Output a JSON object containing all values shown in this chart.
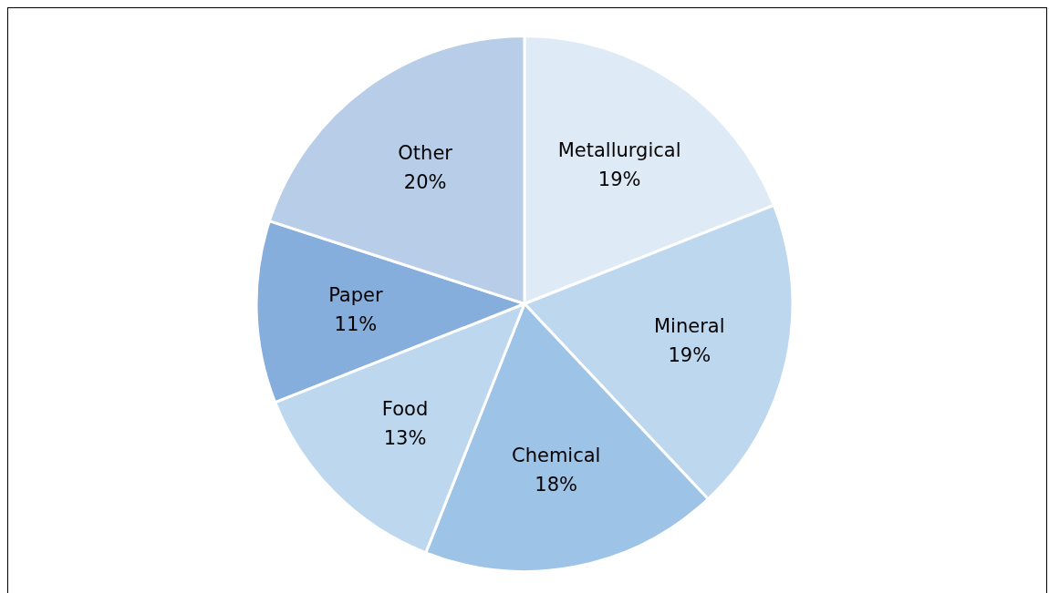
{
  "chart_data": {
    "type": "pie",
    "categories": [
      "Metallurgical",
      "Mineral",
      "Chemical",
      "Food",
      "Paper",
      "Other"
    ],
    "values": [
      19,
      19,
      18,
      13,
      11,
      20
    ],
    "colors": [
      "#deeaf6",
      "#bdd7ee",
      "#9dc3e6",
      "#bdd7ee",
      "#85aedc",
      "#b8cde8"
    ],
    "value_labels": [
      "19%",
      "19%",
      "18%",
      "13%",
      "11%",
      "20%"
    ],
    "legend": false
  }
}
